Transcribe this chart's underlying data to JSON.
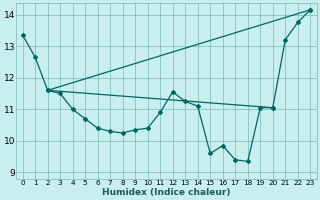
{
  "xlabel": "Humidex (Indice chaleur)",
  "bg_color": "#c8eeee",
  "grid_color": "#7ab8b8",
  "line_color": "#006666",
  "xlim": [
    -0.5,
    23.5
  ],
  "ylim": [
    8.8,
    14.35
  ],
  "xtick_labels": [
    "0",
    "1",
    "2",
    "3",
    "4",
    "5",
    "6",
    "7",
    "8",
    "9",
    "10",
    "11",
    "12",
    "13",
    "14",
    "15",
    "16",
    "17",
    "18",
    "19",
    "20",
    "21",
    "22",
    "23"
  ],
  "ytick_values": [
    9,
    10,
    11,
    12,
    13,
    14
  ],
  "series1": [
    [
      0,
      13.35
    ],
    [
      1,
      12.65
    ],
    [
      2,
      11.6
    ],
    [
      3,
      11.5
    ],
    [
      4,
      11.0
    ],
    [
      5,
      10.7
    ],
    [
      6,
      10.4
    ],
    [
      7,
      10.3
    ],
    [
      8,
      10.25
    ],
    [
      9,
      10.35
    ],
    [
      10,
      10.4
    ],
    [
      11,
      10.9
    ],
    [
      12,
      11.55
    ],
    [
      13,
      11.25
    ],
    [
      14,
      11.1
    ],
    [
      15,
      9.6
    ],
    [
      16,
      9.85
    ],
    [
      17,
      9.4
    ],
    [
      18,
      9.35
    ],
    [
      19,
      11.05
    ],
    [
      20,
      11.05
    ]
  ],
  "series2": [
    [
      2,
      11.6
    ],
    [
      23,
      14.15
    ]
  ],
  "series3": [
    [
      2,
      11.6
    ],
    [
      20,
      11.05
    ]
  ],
  "series4": [
    [
      20,
      11.05
    ],
    [
      21,
      13.2
    ],
    [
      22,
      13.75
    ],
    [
      23,
      14.15
    ]
  ]
}
